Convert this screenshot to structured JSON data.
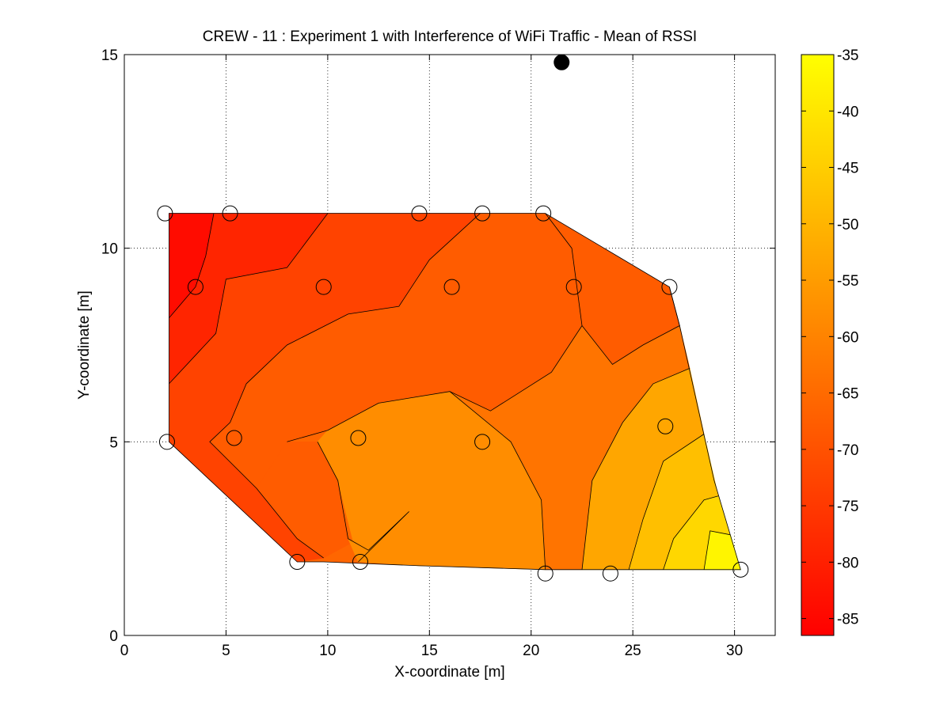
{
  "chart_data": {
    "type": "contour",
    "title": "CREW - 11 : Experiment 1 with Interference of WiFi Traffic - Mean of RSSI",
    "xlabel": "X-coordinate [m]",
    "ylabel": "Y-coordinate [m]",
    "xlim": [
      0,
      32
    ],
    "ylim": [
      0,
      15
    ],
    "xticks": [
      0,
      5,
      10,
      15,
      20,
      25,
      30
    ],
    "yticks": [
      0,
      5,
      10,
      15
    ],
    "grid": true,
    "colorbar": {
      "clim": [
        -86.5,
        -35
      ],
      "ticks": [
        -35,
        -40,
        -45,
        -50,
        -55,
        -60,
        -65,
        -70,
        -75,
        -80,
        -85
      ],
      "colormap": "autumn",
      "color_low": "#ff0000",
      "color_high": "#ffff00"
    },
    "region_outline": [
      [
        2.2,
        10.9
      ],
      [
        20.7,
        10.9
      ],
      [
        26.8,
        9.0
      ],
      [
        27.3,
        8.0
      ],
      [
        29.0,
        4.0
      ],
      [
        30.3,
        1.7
      ],
      [
        20.7,
        1.7
      ],
      [
        14.5,
        1.8
      ],
      [
        9.8,
        1.9
      ],
      [
        8.5,
        1.9
      ],
      [
        2.2,
        5.0
      ]
    ],
    "filled_regions": [
      {
        "level": -84,
        "polygon": [
          [
            2.2,
            10.9
          ],
          [
            4.4,
            10.9
          ],
          [
            4.0,
            9.8
          ],
          [
            3.5,
            9.0
          ],
          [
            2.2,
            8.2
          ]
        ]
      },
      {
        "level": -79,
        "polygon": [
          [
            4.4,
            10.9
          ],
          [
            10.0,
            10.9
          ],
          [
            8.0,
            9.5
          ],
          [
            5.0,
            9.2
          ],
          [
            4.5,
            7.8
          ],
          [
            2.2,
            6.5
          ],
          [
            2.2,
            8.2
          ],
          [
            3.5,
            9.0
          ],
          [
            4.0,
            9.8
          ]
        ]
      },
      {
        "level": -73,
        "polygon": [
          [
            10.0,
            10.9
          ],
          [
            17.5,
            10.9
          ],
          [
            15.0,
            9.7
          ],
          [
            13.5,
            8.5
          ],
          [
            11.0,
            8.3
          ],
          [
            8.0,
            7.5
          ],
          [
            6.0,
            6.5
          ],
          [
            5.2,
            5.5
          ],
          [
            4.2,
            5.0
          ],
          [
            3.0,
            5.0
          ],
          [
            2.2,
            5.0
          ],
          [
            2.2,
            6.5
          ],
          [
            4.5,
            7.8
          ],
          [
            5.0,
            9.2
          ],
          [
            8.0,
            9.5
          ]
        ]
      },
      {
        "level": -73,
        "polygon": [
          [
            2.2,
            5.0
          ],
          [
            3.0,
            5.0
          ],
          [
            4.2,
            5.0
          ],
          [
            6.5,
            3.8
          ],
          [
            8.5,
            2.5
          ],
          [
            9.8,
            2.0
          ],
          [
            8.5,
            1.9
          ]
        ]
      },
      {
        "level": -68,
        "polygon": [
          [
            17.5,
            10.9
          ],
          [
            20.7,
            10.9
          ],
          [
            22.0,
            10.0
          ],
          [
            22.5,
            8.0
          ],
          [
            21.0,
            6.8
          ],
          [
            18.0,
            5.8
          ],
          [
            16.0,
            6.3
          ],
          [
            12.5,
            6.0
          ],
          [
            10.0,
            5.3
          ],
          [
            8.0,
            5.0
          ],
          [
            6.5,
            3.8
          ],
          [
            4.2,
            5.0
          ],
          [
            5.2,
            5.5
          ],
          [
            6.0,
            6.5
          ],
          [
            8.0,
            7.5
          ],
          [
            11.0,
            8.3
          ],
          [
            13.5,
            8.5
          ],
          [
            15.0,
            9.7
          ]
        ]
      },
      {
        "level": -68,
        "polygon": [
          [
            8.5,
            2.5
          ],
          [
            9.8,
            2.0
          ],
          [
            14.0,
            3.2
          ],
          [
            12.0,
            2.2
          ],
          [
            11.0,
            2.5
          ],
          [
            10.5,
            4.0
          ],
          [
            9.5,
            5.0
          ],
          [
            8.0,
            5.0
          ],
          [
            6.5,
            3.8
          ]
        ]
      },
      {
        "level": -68,
        "polygon": [
          [
            20.7,
            10.9
          ],
          [
            24.5,
            9.7
          ],
          [
            26.8,
            9.0
          ],
          [
            27.3,
            8.0
          ],
          [
            25.5,
            7.5
          ],
          [
            24.0,
            7.0
          ],
          [
            22.5,
            8.0
          ],
          [
            22.0,
            10.0
          ]
        ]
      },
      {
        "level": -63,
        "polygon": [
          [
            22.5,
            8.0
          ],
          [
            24.0,
            7.0
          ],
          [
            25.5,
            7.5
          ],
          [
            27.3,
            8.0
          ],
          [
            27.8,
            6.9
          ],
          [
            26.0,
            6.5
          ],
          [
            24.5,
            5.5
          ],
          [
            23.0,
            4.0
          ],
          [
            22.5,
            1.7
          ],
          [
            20.7,
            1.7
          ],
          [
            20.5,
            3.5
          ],
          [
            19.0,
            5.0
          ],
          [
            16.0,
            6.3
          ],
          [
            18.0,
            5.8
          ],
          [
            21.0,
            6.8
          ]
        ]
      },
      {
        "level": -58,
        "polygon": [
          [
            10.0,
            5.3
          ],
          [
            12.5,
            6.0
          ],
          [
            16.0,
            6.3
          ],
          [
            19.0,
            5.0
          ],
          [
            20.5,
            3.5
          ],
          [
            20.7,
            1.7
          ],
          [
            14.5,
            1.8
          ],
          [
            11.5,
            1.9
          ],
          [
            10.5,
            4.0
          ],
          [
            9.5,
            5.0
          ]
        ]
      },
      {
        "level": -58,
        "polygon": [
          [
            11.0,
            2.5
          ],
          [
            12.0,
            2.2
          ],
          [
            14.0,
            3.2
          ],
          [
            11.5,
            1.9
          ]
        ]
      },
      {
        "level": -53,
        "polygon": [
          [
            23.0,
            4.0
          ],
          [
            24.5,
            5.5
          ],
          [
            26.0,
            6.5
          ],
          [
            27.8,
            6.9
          ],
          [
            28.5,
            5.2
          ],
          [
            26.5,
            4.5
          ],
          [
            25.5,
            3.0
          ],
          [
            24.8,
            1.7
          ],
          [
            22.5,
            1.7
          ]
        ]
      },
      {
        "level": -48,
        "polygon": [
          [
            26.5,
            4.5
          ],
          [
            28.5,
            5.2
          ],
          [
            29.2,
            3.6
          ],
          [
            28.5,
            3.5
          ],
          [
            27.0,
            2.5
          ],
          [
            26.5,
            1.7
          ],
          [
            24.8,
            1.7
          ],
          [
            25.5,
            3.0
          ]
        ]
      },
      {
        "level": -43,
        "polygon": [
          [
            27.0,
            2.5
          ],
          [
            28.5,
            3.5
          ],
          [
            29.2,
            3.6
          ],
          [
            30.3,
            1.7
          ],
          [
            26.5,
            1.7
          ]
        ]
      },
      {
        "level": -37,
        "polygon": [
          [
            28.8,
            2.7
          ],
          [
            29.8,
            2.6
          ],
          [
            30.3,
            1.7
          ],
          [
            28.5,
            1.7
          ]
        ]
      }
    ],
    "contour_lines": [
      [
        [
          4.4,
          10.9
        ],
        [
          4.0,
          9.8
        ],
        [
          3.5,
          9.0
        ],
        [
          2.2,
          8.2
        ]
      ],
      [
        [
          10.0,
          10.9
        ],
        [
          8.0,
          9.5
        ],
        [
          5.0,
          9.2
        ],
        [
          4.5,
          7.8
        ],
        [
          2.2,
          6.5
        ]
      ],
      [
        [
          17.5,
          10.9
        ],
        [
          15.0,
          9.7
        ],
        [
          13.5,
          8.5
        ],
        [
          11.0,
          8.3
        ],
        [
          8.0,
          7.5
        ],
        [
          6.0,
          6.5
        ],
        [
          5.2,
          5.5
        ],
        [
          4.2,
          5.0
        ],
        [
          6.5,
          3.8
        ],
        [
          8.5,
          2.5
        ],
        [
          9.8,
          2.0
        ]
      ],
      [
        [
          20.7,
          10.9
        ],
        [
          22.0,
          10.0
        ],
        [
          22.5,
          8.0
        ],
        [
          21.0,
          6.8
        ],
        [
          18.0,
          5.8
        ],
        [
          16.0,
          6.3
        ],
        [
          12.5,
          6.0
        ],
        [
          10.0,
          5.3
        ],
        [
          8.0,
          5.0
        ]
      ],
      [
        [
          9.5,
          5.0
        ],
        [
          10.5,
          4.0
        ],
        [
          11.0,
          2.5
        ],
        [
          12.0,
          2.2
        ],
        [
          14.0,
          3.2
        ],
        [
          11.5,
          1.9
        ]
      ],
      [
        [
          16.0,
          6.3
        ],
        [
          19.0,
          5.0
        ],
        [
          20.5,
          3.5
        ],
        [
          20.7,
          1.7
        ]
      ],
      [
        [
          26.8,
          9.0
        ],
        [
          27.3,
          8.0
        ],
        [
          25.5,
          7.5
        ],
        [
          24.0,
          7.0
        ],
        [
          22.5,
          8.0
        ]
      ],
      [
        [
          27.8,
          6.9
        ],
        [
          26.0,
          6.5
        ],
        [
          24.5,
          5.5
        ],
        [
          23.0,
          4.0
        ],
        [
          22.5,
          1.7
        ]
      ],
      [
        [
          28.5,
          5.2
        ],
        [
          26.5,
          4.5
        ],
        [
          25.5,
          3.0
        ],
        [
          24.8,
          1.7
        ]
      ],
      [
        [
          29.2,
          3.6
        ],
        [
          28.5,
          3.5
        ],
        [
          27.0,
          2.5
        ],
        [
          26.5,
          1.7
        ]
      ],
      [
        [
          29.8,
          2.6
        ],
        [
          28.8,
          2.7
        ],
        [
          28.5,
          1.7
        ]
      ]
    ],
    "sensor_nodes": [
      {
        "x": 2.0,
        "y": 10.9
      },
      {
        "x": 5.2,
        "y": 10.9
      },
      {
        "x": 14.5,
        "y": 10.9
      },
      {
        "x": 17.6,
        "y": 10.9
      },
      {
        "x": 20.6,
        "y": 10.9
      },
      {
        "x": 3.5,
        "y": 9.0
      },
      {
        "x": 9.8,
        "y": 9.0
      },
      {
        "x": 16.1,
        "y": 9.0
      },
      {
        "x": 22.1,
        "y": 9.0
      },
      {
        "x": 26.8,
        "y": 9.0
      },
      {
        "x": 2.1,
        "y": 5.0
      },
      {
        "x": 5.4,
        "y": 5.1
      },
      {
        "x": 11.5,
        "y": 5.1
      },
      {
        "x": 17.6,
        "y": 5.0
      },
      {
        "x": 26.6,
        "y": 5.4
      },
      {
        "x": 8.5,
        "y": 1.9
      },
      {
        "x": 11.6,
        "y": 1.9
      },
      {
        "x": 20.7,
        "y": 1.6
      },
      {
        "x": 23.9,
        "y": 1.6
      },
      {
        "x": 30.3,
        "y": 1.7
      }
    ],
    "interferer": {
      "x": 21.5,
      "y": 14.8
    }
  }
}
